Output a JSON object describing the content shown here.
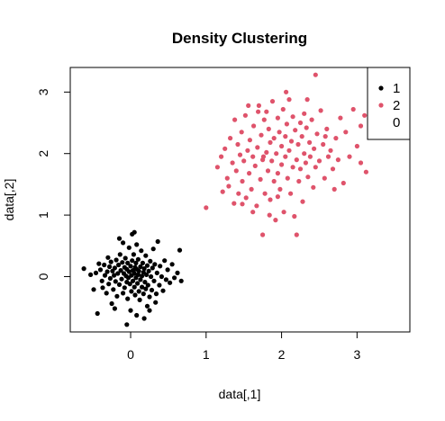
{
  "chart_data": {
    "type": "scatter",
    "title": "Density Clustering",
    "xlabel": "data[,1]",
    "ylabel": "data[,2]",
    "xlim": [
      -0.8,
      3.7
    ],
    "ylim": [
      -0.9,
      3.4
    ],
    "xticks": [
      0,
      1,
      2,
      3
    ],
    "yticks": [
      0,
      1,
      2,
      3
    ],
    "grid": false,
    "legend": {
      "position": "top-right",
      "entries": [
        "1",
        "2",
        "0"
      ]
    },
    "colors": {
      "1": "#000000",
      "2": "#DF536B",
      "0": "#4D4D4D"
    },
    "series": [
      {
        "name": "1",
        "color": "#000000",
        "points": [
          [
            -0.62,
            0.13
          ],
          [
            -0.53,
            0.03
          ],
          [
            -0.49,
            -0.21
          ],
          [
            -0.46,
            0.06
          ],
          [
            -0.44,
            -0.6
          ],
          [
            -0.42,
            0.21
          ],
          [
            -0.4,
            0.11
          ],
          [
            -0.38,
            -0.07
          ],
          [
            -0.37,
            -0.18
          ],
          [
            -0.35,
            0.19
          ],
          [
            -0.34,
            0.02
          ],
          [
            -0.32,
            -0.27
          ],
          [
            -0.31,
            0.08
          ],
          [
            -0.3,
            0.31
          ],
          [
            -0.29,
            -0.12
          ],
          [
            -0.28,
            0.16
          ],
          [
            -0.27,
            -0.03
          ],
          [
            -0.26,
            0.24
          ],
          [
            -0.25,
            -0.44
          ],
          [
            -0.24,
            0.09
          ],
          [
            -0.23,
            -0.21
          ],
          [
            -0.22,
            0.02
          ],
          [
            -0.21,
            0.14
          ],
          [
            -0.2,
            -0.08
          ],
          [
            -0.19,
            0.27
          ],
          [
            -0.18,
            -0.32
          ],
          [
            -0.17,
            0.05
          ],
          [
            -0.16,
            0.19
          ],
          [
            -0.15,
            -0.13
          ],
          [
            -0.14,
            0.36
          ],
          [
            -0.13,
            0.1
          ],
          [
            -0.12,
            -0.04
          ],
          [
            -0.11,
            0.23
          ],
          [
            -0.1,
            -0.27
          ],
          [
            -0.09,
            0.05
          ],
          [
            -0.08,
            0.15
          ],
          [
            -0.08,
            -0.18
          ],
          [
            -0.07,
            0.3
          ],
          [
            -0.06,
            0.01
          ],
          [
            -0.05,
            -0.09
          ],
          [
            -0.05,
            0.12
          ],
          [
            -0.04,
            0.22
          ],
          [
            -0.04,
            -0.36
          ],
          [
            -0.03,
            -0.02
          ],
          [
            -0.02,
            0.08
          ],
          [
            -0.02,
            0.47
          ],
          [
            -0.01,
            -0.12
          ],
          [
            0.0,
            0.17
          ],
          [
            0.0,
            -0.55
          ],
          [
            0.01,
            0.02
          ],
          [
            0.01,
            -0.24
          ],
          [
            0.02,
            0.26
          ],
          [
            0.02,
            0.69
          ],
          [
            0.03,
            0.1
          ],
          [
            0.03,
            -0.07
          ],
          [
            0.04,
            0.36
          ],
          [
            0.05,
            -0.17
          ],
          [
            0.05,
            0.05
          ],
          [
            0.06,
            0.15
          ],
          [
            0.06,
            -0.3
          ],
          [
            0.07,
            0.22
          ],
          [
            0.07,
            -0.02
          ],
          [
            0.08,
            0.12
          ],
          [
            0.08,
            0.52
          ],
          [
            0.09,
            -0.11
          ],
          [
            0.1,
            0.03
          ],
          [
            0.1,
            0.28
          ],
          [
            0.11,
            -0.24
          ],
          [
            0.11,
            0.09
          ],
          [
            0.12,
            -0.38
          ],
          [
            0.13,
            0.16
          ],
          [
            0.13,
            -0.05
          ],
          [
            0.14,
            0.42
          ],
          [
            0.15,
            0.01
          ],
          [
            0.15,
            -0.17
          ],
          [
            0.16,
            0.22
          ],
          [
            0.17,
            -0.28
          ],
          [
            0.17,
            0.07
          ],
          [
            0.18,
            0.13
          ],
          [
            0.19,
            -0.09
          ],
          [
            0.2,
            0.34
          ],
          [
            0.2,
            -0.2
          ],
          [
            0.21,
            0.03
          ],
          [
            0.22,
            0.18
          ],
          [
            0.23,
            -0.14
          ],
          [
            0.24,
            0.09
          ],
          [
            0.25,
            -0.33
          ],
          [
            0.26,
            0.25
          ],
          [
            0.27,
            0.0
          ],
          [
            0.28,
            -0.22
          ],
          [
            0.29,
            0.14
          ],
          [
            0.3,
            0.45
          ],
          [
            0.31,
            -0.07
          ],
          [
            0.32,
            0.2
          ],
          [
            0.34,
            -0.28
          ],
          [
            0.35,
            0.06
          ],
          [
            0.36,
            0.57
          ],
          [
            0.38,
            -0.14
          ],
          [
            0.39,
            0.17
          ],
          [
            0.41,
            0.0
          ],
          [
            0.43,
            -0.23
          ],
          [
            0.45,
            0.26
          ],
          [
            0.47,
            -0.05
          ],
          [
            0.49,
            0.11
          ],
          [
            0.52,
            -0.1
          ],
          [
            0.55,
            0.2
          ],
          [
            0.58,
            -0.02
          ],
          [
            0.62,
            0.06
          ],
          [
            0.65,
            0.43
          ],
          [
            0.67,
            -0.07
          ],
          [
            -0.15,
            0.62
          ],
          [
            0.05,
            0.72
          ],
          [
            0.22,
            -0.48
          ],
          [
            0.25,
            -0.55
          ],
          [
            0.18,
            -0.68
          ],
          [
            -0.05,
            -0.78
          ],
          [
            0.08,
            -0.63
          ],
          [
            -0.21,
            -0.52
          ],
          [
            0.33,
            -0.42
          ],
          [
            -0.1,
            0.55
          ]
        ]
      },
      {
        "name": "2",
        "color": "#DF536B",
        "points": [
          [
            1.0,
            1.12
          ],
          [
            1.15,
            1.78
          ],
          [
            1.2,
            1.95
          ],
          [
            1.22,
            1.38
          ],
          [
            1.25,
            2.08
          ],
          [
            1.28,
            1.6
          ],
          [
            1.3,
            1.47
          ],
          [
            1.32,
            2.25
          ],
          [
            1.35,
            1.85
          ],
          [
            1.37,
            1.19
          ],
          [
            1.38,
            2.55
          ],
          [
            1.4,
            1.72
          ],
          [
            1.42,
            2.15
          ],
          [
            1.43,
            1.35
          ],
          [
            1.45,
            1.98
          ],
          [
            1.47,
            2.35
          ],
          [
            1.48,
            1.55
          ],
          [
            1.5,
            1.88
          ],
          [
            1.52,
            2.62
          ],
          [
            1.53,
            1.28
          ],
          [
            1.55,
            2.05
          ],
          [
            1.57,
            1.68
          ],
          [
            1.58,
            2.22
          ],
          [
            1.6,
            1.42
          ],
          [
            1.62,
            1.95
          ],
          [
            1.63,
            2.45
          ],
          [
            1.65,
            1.8
          ],
          [
            1.67,
            1.15
          ],
          [
            1.68,
            2.1
          ],
          [
            1.7,
            2.78
          ],
          [
            1.72,
            1.58
          ],
          [
            1.73,
            2.3
          ],
          [
            1.75,
            1.9
          ],
          [
            1.75,
            0.68
          ],
          [
            1.77,
            2.55
          ],
          [
            1.78,
            1.35
          ],
          [
            1.8,
            2.02
          ],
          [
            1.8,
            2.68
          ],
          [
            1.82,
            1.72
          ],
          [
            1.83,
            2.4
          ],
          [
            1.85,
            1.25
          ],
          [
            1.85,
            2.18
          ],
          [
            1.87,
            1.88
          ],
          [
            1.88,
            2.85
          ],
          [
            1.9,
            1.55
          ],
          [
            1.9,
            2.25
          ],
          [
            1.92,
            0.92
          ],
          [
            1.93,
            2.0
          ],
          [
            1.95,
            2.58
          ],
          [
            1.95,
            1.68
          ],
          [
            1.97,
            2.35
          ],
          [
            1.98,
            1.42
          ],
          [
            2.0,
            2.12
          ],
          [
            2.0,
            1.82
          ],
          [
            2.02,
            2.72
          ],
          [
            2.03,
            1.05
          ],
          [
            2.05,
            2.28
          ],
          [
            2.05,
            1.95
          ],
          [
            2.07,
            2.48
          ],
          [
            2.08,
            1.6
          ],
          [
            2.1,
            2.05
          ],
          [
            2.1,
            2.88
          ],
          [
            2.12,
            1.35
          ],
          [
            2.13,
            2.2
          ],
          [
            2.15,
            1.78
          ],
          [
            2.15,
            2.6
          ],
          [
            2.17,
            0.98
          ],
          [
            2.18,
            2.38
          ],
          [
            2.2,
            1.9
          ],
          [
            2.2,
            0.68
          ],
          [
            2.22,
            2.15
          ],
          [
            2.23,
            1.55
          ],
          [
            2.25,
            2.5
          ],
          [
            2.25,
            1.75
          ],
          [
            2.27,
            2.28
          ],
          [
            2.28,
            1.22
          ],
          [
            2.3,
            2.0
          ],
          [
            2.3,
            2.65
          ],
          [
            2.32,
            1.85
          ],
          [
            2.33,
            2.42
          ],
          [
            2.35,
            1.62
          ],
          [
            2.37,
            2.18
          ],
          [
            2.38,
            1.95
          ],
          [
            2.4,
            2.55
          ],
          [
            2.42,
            1.45
          ],
          [
            2.43,
            2.08
          ],
          [
            2.45,
            3.28
          ],
          [
            2.45,
            1.78
          ],
          [
            2.47,
            2.32
          ],
          [
            2.5,
            1.88
          ],
          [
            2.52,
            2.7
          ],
          [
            2.55,
            2.15
          ],
          [
            2.57,
            1.6
          ],
          [
            2.6,
            2.4
          ],
          [
            2.62,
            1.95
          ],
          [
            2.65,
            2.05
          ],
          [
            2.68,
            1.75
          ],
          [
            2.72,
            2.25
          ],
          [
            2.75,
            1.9
          ],
          [
            2.78,
            2.58
          ],
          [
            2.82,
            1.52
          ],
          [
            2.85,
            2.35
          ],
          [
            2.9,
            1.95
          ],
          [
            2.95,
            2.72
          ],
          [
            3.0,
            2.12
          ],
          [
            3.05,
            1.85
          ],
          [
            3.1,
            2.62
          ],
          [
            3.12,
            1.7
          ],
          [
            3.05,
            2.45
          ],
          [
            1.62,
            1.05
          ],
          [
            1.48,
            1.18
          ],
          [
            1.56,
            2.78
          ],
          [
            1.69,
            2.68
          ],
          [
            1.95,
            1.3
          ],
          [
            2.06,
            3.0
          ],
          [
            2.34,
            2.88
          ],
          [
            2.58,
            2.28
          ],
          [
            2.7,
            1.42
          ],
          [
            1.84,
            1.0
          ],
          [
            1.76,
            1.95
          ]
        ]
      }
    ]
  }
}
